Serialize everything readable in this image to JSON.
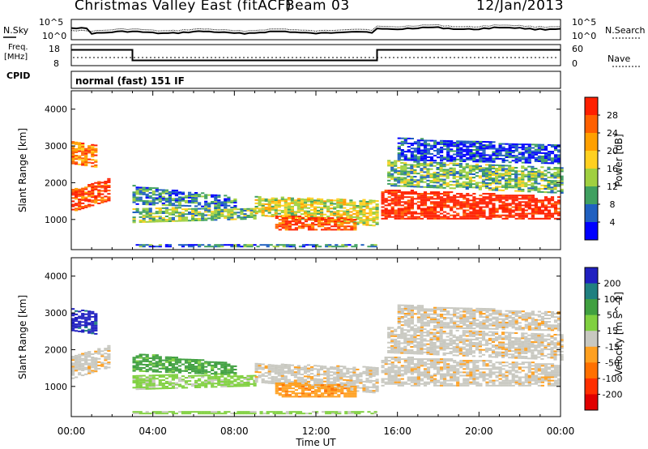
{
  "header": {
    "station": "Christmas Valley East (fitACF)",
    "beam": "Beam 03",
    "date": "12/Jan/2013"
  },
  "status_panels": {
    "nsky_label": "N.Sky",
    "nsearch_label": "N.Search",
    "nave_label": "Nave",
    "freq_label_line1": "Freq.",
    "freq_label_line2": "[MHz]",
    "cpid_label": "CPID",
    "cpid_text": "normal (fast) 151 IF",
    "noise_ticks": [
      "10^5",
      "10^0"
    ],
    "freq_ticks": [
      "18",
      "8"
    ],
    "nave_ticks": [
      "60",
      "0"
    ],
    "freq_trace": {
      "times_h": [
        0,
        3,
        3,
        15,
        15,
        24
      ],
      "values_mhz": [
        15.5,
        15.5,
        10.5,
        10.5,
        15.5,
        15.5
      ]
    }
  },
  "power_panel": {
    "ylabel": "Slant Range [km]",
    "colorbar_label": "Power [dB]",
    "colorbar_ticks": [
      "28",
      "24",
      "20",
      "16",
      "12",
      "8",
      "4"
    ],
    "colorbar_colors": [
      "#ff2000",
      "#ff6000",
      "#ffa000",
      "#ffd020",
      "#a0d040",
      "#40a060",
      "#2060c0",
      "#0000ff"
    ]
  },
  "velocity_panel": {
    "ylabel": "Slant Range [km]",
    "colorbar_label": "Velocity [m s^-1]",
    "colorbar_ticks": [
      "200",
      "100",
      "50",
      "15",
      "-15",
      "-50",
      "-100",
      "-200"
    ],
    "colorbar_colors": [
      "#2020c0",
      "#208080",
      "#40a040",
      "#80d040",
      "#c8c8c0",
      "#ffa020",
      "#ff7000",
      "#ff3000",
      "#e00000"
    ]
  },
  "chart_data": [
    {
      "type": "line",
      "title": "Christmas Valley East (fitACF) Beam 03 12/Jan/2013",
      "xlabel": "Time UT",
      "ylabel": "Freq. [MHz]",
      "x_ticks": [
        "00:00",
        "04:00",
        "08:00",
        "12:00",
        "16:00",
        "20:00",
        "00:00"
      ],
      "ylim": [
        8,
        18
      ],
      "series": [
        {
          "x_hours": [
            0,
            3,
            3,
            15,
            15,
            24
          ],
          "values": [
            15.5,
            15.5,
            10.5,
            10.5,
            15.5,
            15.5
          ]
        }
      ]
    },
    {
      "type": "heatmap",
      "title": "Power [dB]",
      "xlabel": "Time UT",
      "ylabel": "Slant Range [km]",
      "x_ticks": [
        "00:00",
        "04:00",
        "08:00",
        "12:00",
        "16:00",
        "20:00",
        "00:00"
      ],
      "y_ticks": [
        1000,
        2000,
        3000,
        4000
      ],
      "ylim": [
        180,
        4500
      ],
      "colorbar_range": [
        0,
        30
      ],
      "colorbar_ticks": [
        4,
        8,
        12,
        16,
        20,
        24,
        28
      ]
    },
    {
      "type": "heatmap",
      "title": "Velocity [m s^-1]",
      "xlabel": "Time UT",
      "ylabel": "Slant Range [km]",
      "x_ticks": [
        "00:00",
        "04:00",
        "08:00",
        "12:00",
        "16:00",
        "20:00",
        "00:00"
      ],
      "y_ticks": [
        1000,
        2000,
        3000,
        4000
      ],
      "ylim": [
        180,
        4500
      ],
      "colorbar_ticks": [
        200,
        100,
        50,
        15,
        -15,
        -50,
        -100,
        -200
      ]
    }
  ]
}
